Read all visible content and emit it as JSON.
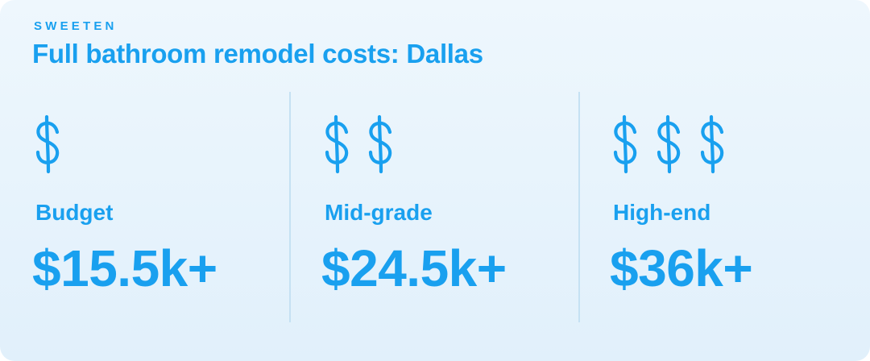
{
  "brand": "SWEETEN",
  "title": "Full bathroom remodel costs: Dallas",
  "tiers": [
    {
      "label": "Budget",
      "price": "$15.5k+",
      "dollar_count": 1
    },
    {
      "label": "Mid-grade",
      "price": "$24.5k+",
      "dollar_count": 2
    },
    {
      "label": "High-end",
      "price": "$36k+",
      "dollar_count": 3
    }
  ],
  "colors": {
    "accent": "#19a0ef",
    "background": "#e8f4fc",
    "divider": "#c5e1f3"
  }
}
